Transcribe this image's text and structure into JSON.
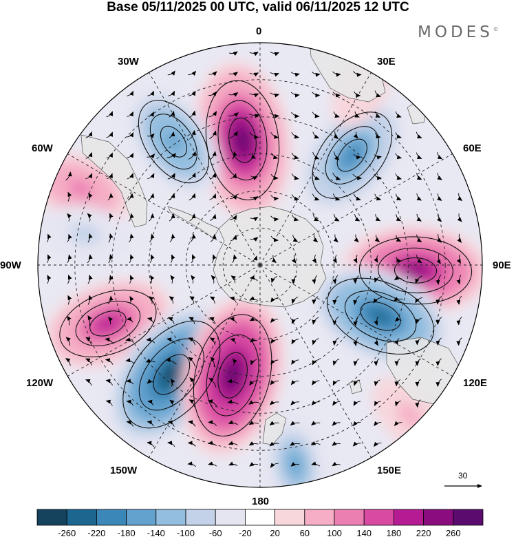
{
  "title": "Base 05/11/2025 00 UTC, valid 06/11/2025 12 UTC",
  "brand": {
    "name": "MODES",
    "mark": "©"
  },
  "projection": "South polar stereographic",
  "longitude_labels": {
    "top": "0",
    "upper_left": "30W",
    "upper_right": "30E",
    "left_upper": "60W",
    "right_upper": "60E",
    "left": "90W",
    "right": "90E",
    "left_lower": "120W",
    "right_lower": "120E",
    "lower_left": "150W",
    "lower_right": "150E",
    "bottom": "180"
  },
  "wind_reference": {
    "value": "30"
  },
  "colorbar": {
    "ticks": [
      "-260",
      "-220",
      "-180",
      "-140",
      "-100",
      "-60",
      "-20",
      "20",
      "60",
      "100",
      "140",
      "180",
      "220",
      "260"
    ],
    "colors": [
      "#15425d",
      "#1b6790",
      "#3a87b8",
      "#63a2cf",
      "#93bedf",
      "#c3d2e8",
      "#e5e5f1",
      "#ffffff",
      "#f7d6dc",
      "#f5aec5",
      "#ec7fb2",
      "#d94ba3",
      "#b51b92",
      "#8b0c7e",
      "#5b0b6e"
    ]
  },
  "anomalies": [
    {
      "sign": "+",
      "level": 0.95,
      "lon_deg": 352,
      "colat_deg": 51
    },
    {
      "sign": "-",
      "level": 0.6,
      "lon_deg": 325,
      "colat_deg": 61
    },
    {
      "sign": "-",
      "level": 0.7,
      "lon_deg": 40,
      "colat_deg": 58
    },
    {
      "sign": "+",
      "level": 0.45,
      "lon_deg": 293,
      "colat_deg": 79
    },
    {
      "sign": "-",
      "level": 0.3,
      "lon_deg": 280,
      "colat_deg": 72
    },
    {
      "sign": "+",
      "level": 0.85,
      "lon_deg": 92,
      "colat_deg": 63
    },
    {
      "sign": "+",
      "level": 0.7,
      "lon_deg": 249,
      "colat_deg": 66
    },
    {
      "sign": "-",
      "level": 0.85,
      "lon_deg": 113,
      "colat_deg": 53
    },
    {
      "sign": "-",
      "level": 1.0,
      "lon_deg": 219,
      "colat_deg": 57
    },
    {
      "sign": "+",
      "level": 1.0,
      "lon_deg": 194,
      "colat_deg": 46
    },
    {
      "sign": "-",
      "level": 0.5,
      "lon_deg": 170,
      "colat_deg": 82
    },
    {
      "sign": "+",
      "level": 0.3,
      "lon_deg": 135,
      "colat_deg": 86
    },
    {
      "sign": "+",
      "level": 0.2,
      "lon_deg": 30,
      "colat_deg": 82
    }
  ]
}
